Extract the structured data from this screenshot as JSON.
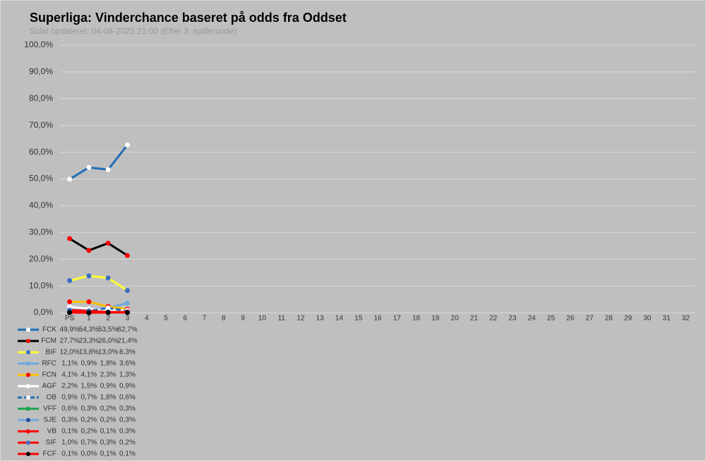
{
  "chart_data": {
    "type": "line",
    "title": "Superliga: Vinderchance baseret på odds fra Oddset",
    "subtitle": "Sidst opdateret: 04-08-2025 21:00 (Efter 3. spillerunde)",
    "categories": [
      "PS",
      "1",
      "2",
      "3",
      "4",
      "5",
      "6",
      "7",
      "8",
      "9",
      "10",
      "11",
      "12",
      "13",
      "14",
      "15",
      "16",
      "17",
      "18",
      "19",
      "20",
      "21",
      "22",
      "23",
      "24",
      "25",
      "26",
      "27",
      "28",
      "29",
      "30",
      "31",
      "32"
    ],
    "ylim": [
      0,
      100
    ],
    "yticks": [
      {
        "value": 0,
        "label": "0,0%"
      },
      {
        "value": 10,
        "label": "10,0%"
      },
      {
        "value": 20,
        "label": "20,0%"
      },
      {
        "value": 30,
        "label": "30,0%"
      },
      {
        "value": 40,
        "label": "40,0%"
      },
      {
        "value": 50,
        "label": "50,0%"
      },
      {
        "value": 60,
        "label": "60,0%"
      },
      {
        "value": 70,
        "label": "70,0%"
      },
      {
        "value": 80,
        "label": "80,0%"
      },
      {
        "value": 90,
        "label": "90,0%"
      },
      {
        "value": 100,
        "label": "100,0%"
      }
    ],
    "grid": true,
    "series": [
      {
        "name": "FCK",
        "color": "#1f6fb5",
        "marker_color": "#ffffff",
        "values": [
          49.9,
          54.3,
          53.5,
          62.7,
          null,
          null,
          null,
          null,
          null,
          null,
          null,
          null,
          null,
          null,
          null,
          null,
          null,
          null,
          null,
          null,
          null,
          null,
          null,
          null,
          null,
          null,
          null,
          null,
          null,
          null,
          null,
          null,
          null
        ],
        "value_labels": [
          "49,9%",
          "54,3%",
          "53,5%",
          "62,7%",
          null,
          null,
          null,
          null,
          null,
          null,
          null,
          null,
          null,
          null,
          null,
          null,
          null,
          null,
          null,
          null,
          null,
          null,
          null,
          null,
          null,
          null,
          null,
          null,
          null,
          null,
          null,
          null,
          null
        ]
      },
      {
        "name": "FCM",
        "color": "#000000",
        "marker_color": "#ff0000",
        "values": [
          27.7,
          23.3,
          26.0,
          21.4,
          null,
          null,
          null,
          null,
          null,
          null,
          null,
          null,
          null,
          null,
          null,
          null,
          null,
          null,
          null,
          null,
          null,
          null,
          null,
          null,
          null,
          null,
          null,
          null,
          null,
          null,
          null,
          null,
          null
        ],
        "value_labels": [
          "27,7%",
          "23,3%",
          "26,0%",
          "21,4%",
          null,
          null,
          null,
          null,
          null,
          null,
          null,
          null,
          null,
          null,
          null,
          null,
          null,
          null,
          null,
          null,
          null,
          null,
          null,
          null,
          null,
          null,
          null,
          null,
          null,
          null,
          null,
          null,
          null
        ]
      },
      {
        "name": "BIF",
        "color": "#ffff33",
        "marker_color": "#3a6fc4",
        "values": [
          12.0,
          13.8,
          13.0,
          8.3,
          null,
          null,
          null,
          null,
          null,
          null,
          null,
          null,
          null,
          null,
          null,
          null,
          null,
          null,
          null,
          null,
          null,
          null,
          null,
          null,
          null,
          null,
          null,
          null,
          null,
          null,
          null,
          null,
          null
        ],
        "value_labels": [
          "12,0%",
          "13,8%",
          "13,0%",
          "8,3%",
          null,
          null,
          null,
          null,
          null,
          null,
          null,
          null,
          null,
          null,
          null,
          null,
          null,
          null,
          null,
          null,
          null,
          null,
          null,
          null,
          null,
          null,
          null,
          null,
          null,
          null,
          null,
          null,
          null
        ]
      },
      {
        "name": "RFC",
        "color": "#6fa8dc",
        "marker_color": "#6fa8dc",
        "values": [
          1.1,
          0.9,
          1.8,
          3.6,
          null,
          null,
          null,
          null,
          null,
          null,
          null,
          null,
          null,
          null,
          null,
          null,
          null,
          null,
          null,
          null,
          null,
          null,
          null,
          null,
          null,
          null,
          null,
          null,
          null,
          null,
          null,
          null,
          null
        ],
        "value_labels": [
          "1,1%",
          "0,9%",
          "1,8%",
          "3,6%",
          null,
          null,
          null,
          null,
          null,
          null,
          null,
          null,
          null,
          null,
          null,
          null,
          null,
          null,
          null,
          null,
          null,
          null,
          null,
          null,
          null,
          null,
          null,
          null,
          null,
          null,
          null,
          null,
          null
        ]
      },
      {
        "name": "FCN",
        "color": "#ffc000",
        "marker_color": "#ff0000",
        "values": [
          4.1,
          4.1,
          2.3,
          1.3,
          null,
          null,
          null,
          null,
          null,
          null,
          null,
          null,
          null,
          null,
          null,
          null,
          null,
          null,
          null,
          null,
          null,
          null,
          null,
          null,
          null,
          null,
          null,
          null,
          null,
          null,
          null,
          null,
          null
        ],
        "value_labels": [
          "4,1%",
          "4,1%",
          "2,3%",
          "1,3%",
          null,
          null,
          null,
          null,
          null,
          null,
          null,
          null,
          null,
          null,
          null,
          null,
          null,
          null,
          null,
          null,
          null,
          null,
          null,
          null,
          null,
          null,
          null,
          null,
          null,
          null,
          null,
          null,
          null
        ]
      },
      {
        "name": "AGF",
        "color": "#ffffff",
        "marker_color": "#ffffff",
        "values": [
          2.2,
          1.5,
          0.9,
          0.9,
          null,
          null,
          null,
          null,
          null,
          null,
          null,
          null,
          null,
          null,
          null,
          null,
          null,
          null,
          null,
          null,
          null,
          null,
          null,
          null,
          null,
          null,
          null,
          null,
          null,
          null,
          null,
          null,
          null
        ],
        "value_labels": [
          "2,2%",
          "1,5%",
          "0,9%",
          "0,9%",
          null,
          null,
          null,
          null,
          null,
          null,
          null,
          null,
          null,
          null,
          null,
          null,
          null,
          null,
          null,
          null,
          null,
          null,
          null,
          null,
          null,
          null,
          null,
          null,
          null,
          null,
          null,
          null,
          null
        ]
      },
      {
        "name": "OB",
        "color": "#1f6fb5",
        "marker_color": "#ffffff",
        "dashed": true,
        "values": [
          0.9,
          0.7,
          1.8,
          0.6,
          null,
          null,
          null,
          null,
          null,
          null,
          null,
          null,
          null,
          null,
          null,
          null,
          null,
          null,
          null,
          null,
          null,
          null,
          null,
          null,
          null,
          null,
          null,
          null,
          null,
          null,
          null,
          null,
          null
        ],
        "value_labels": [
          "0,9%",
          "0,7%",
          "1,8%",
          "0,6%",
          null,
          null,
          null,
          null,
          null,
          null,
          null,
          null,
          null,
          null,
          null,
          null,
          null,
          null,
          null,
          null,
          null,
          null,
          null,
          null,
          null,
          null,
          null,
          null,
          null,
          null,
          null,
          null,
          null
        ]
      },
      {
        "name": "VFF",
        "color": "#1aa34a",
        "marker_color": "#1aa34a",
        "values": [
          0.6,
          0.3,
          0.2,
          0.3,
          null,
          null,
          null,
          null,
          null,
          null,
          null,
          null,
          null,
          null,
          null,
          null,
          null,
          null,
          null,
          null,
          null,
          null,
          null,
          null,
          null,
          null,
          null,
          null,
          null,
          null,
          null,
          null,
          null
        ],
        "value_labels": [
          "0,6%",
          "0,3%",
          "0,2%",
          "0,3%",
          null,
          null,
          null,
          null,
          null,
          null,
          null,
          null,
          null,
          null,
          null,
          null,
          null,
          null,
          null,
          null,
          null,
          null,
          null,
          null,
          null,
          null,
          null,
          null,
          null,
          null,
          null,
          null,
          null
        ]
      },
      {
        "name": "SJE",
        "color": "#6fa8dc",
        "marker_color": "#1f4e99",
        "values": [
          0.3,
          0.2,
          0.2,
          0.3,
          null,
          null,
          null,
          null,
          null,
          null,
          null,
          null,
          null,
          null,
          null,
          null,
          null,
          null,
          null,
          null,
          null,
          null,
          null,
          null,
          null,
          null,
          null,
          null,
          null,
          null,
          null,
          null,
          null
        ],
        "value_labels": [
          "0,3%",
          "0,2%",
          "0,2%",
          "0,3%",
          null,
          null,
          null,
          null,
          null,
          null,
          null,
          null,
          null,
          null,
          null,
          null,
          null,
          null,
          null,
          null,
          null,
          null,
          null,
          null,
          null,
          null,
          null,
          null,
          null,
          null,
          null,
          null,
          null
        ]
      },
      {
        "name": "VB",
        "color": "#ff0000",
        "marker_color": "#ff0000",
        "values": [
          0.1,
          0.2,
          0.1,
          0.3,
          null,
          null,
          null,
          null,
          null,
          null,
          null,
          null,
          null,
          null,
          null,
          null,
          null,
          null,
          null,
          null,
          null,
          null,
          null,
          null,
          null,
          null,
          null,
          null,
          null,
          null,
          null,
          null,
          null
        ],
        "value_labels": [
          "0,1%",
          "0,2%",
          "0,1%",
          "0,3%",
          null,
          null,
          null,
          null,
          null,
          null,
          null,
          null,
          null,
          null,
          null,
          null,
          null,
          null,
          null,
          null,
          null,
          null,
          null,
          null,
          null,
          null,
          null,
          null,
          null,
          null,
          null,
          null,
          null
        ]
      },
      {
        "name": "SIF",
        "color": "#ff0000",
        "marker_color": "#3a6fc4",
        "values": [
          1.0,
          0.7,
          0.3,
          0.2,
          null,
          null,
          null,
          null,
          null,
          null,
          null,
          null,
          null,
          null,
          null,
          null,
          null,
          null,
          null,
          null,
          null,
          null,
          null,
          null,
          null,
          null,
          null,
          null,
          null,
          null,
          null,
          null,
          null
        ],
        "value_labels": [
          "1,0%",
          "0,7%",
          "0,3%",
          "0,2%",
          null,
          null,
          null,
          null,
          null,
          null,
          null,
          null,
          null,
          null,
          null,
          null,
          null,
          null,
          null,
          null,
          null,
          null,
          null,
          null,
          null,
          null,
          null,
          null,
          null,
          null,
          null,
          null,
          null
        ]
      },
      {
        "name": "FCF",
        "color": "#ff0000",
        "marker_color": "#000000",
        "values": [
          0.1,
          0.0,
          0.1,
          0.1,
          null,
          null,
          null,
          null,
          null,
          null,
          null,
          null,
          null,
          null,
          null,
          null,
          null,
          null,
          null,
          null,
          null,
          null,
          null,
          null,
          null,
          null,
          null,
          null,
          null,
          null,
          null,
          null,
          null
        ],
        "value_labels": [
          "0,1%",
          "0,0%",
          "0,1%",
          "0,1%",
          null,
          null,
          null,
          null,
          null,
          null,
          null,
          null,
          null,
          null,
          null,
          null,
          null,
          null,
          null,
          null,
          null,
          null,
          null,
          null,
          null,
          null,
          null,
          null,
          null,
          null,
          null,
          null,
          null
        ]
      }
    ]
  }
}
